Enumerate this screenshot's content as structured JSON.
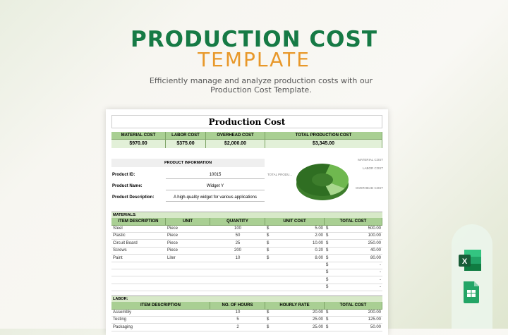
{
  "hero": {
    "title": "PRODUCTION COST",
    "title2": "TEMPLATE",
    "subtitle": "Efficiently manage and analyze production costs with our Production Cost Template."
  },
  "sheet": {
    "title": "Production Cost",
    "summary": {
      "headers": [
        "MATERIAL COST",
        "LABOR COST",
        "OVERHEAD COST",
        "TOTAL PRODUCTION COST"
      ],
      "values": [
        "$970.00",
        "$375.00",
        "$2,000.00",
        "$3,345.00"
      ]
    },
    "product": {
      "heading": "PRODUCT INFORMATION",
      "fields": [
        {
          "label": "Product ID:",
          "value": "10015"
        },
        {
          "label": "Product Name:",
          "value": "Widget Y"
        },
        {
          "label": "Product Description:",
          "value": "A high-quality widget for various applications"
        }
      ]
    },
    "chart": {
      "labels": [
        "MATERIAL COST",
        "LABOR COST",
        "OVERHEAD COST",
        "TOTAL PRODU..."
      ],
      "slices": [
        {
          "name": "MATERIAL COST",
          "value": 970,
          "color": "#6fb84f"
        },
        {
          "name": "LABOR COST",
          "value": 375,
          "color": "#a9d88e"
        },
        {
          "name": "OVERHEAD COST",
          "value": 2000,
          "color": "#2f6e22"
        }
      ]
    },
    "materials": {
      "label": "MATERIALS:",
      "headers": [
        "ITEM DESCRIPTION",
        "UNIT",
        "QUANTITY",
        "UNIT COST",
        "TOTAL COST"
      ],
      "rows": [
        [
          "Steel",
          "Piece",
          "100",
          "$",
          "5.00",
          "$",
          "500.00"
        ],
        [
          "Plastic",
          "Piece",
          "50",
          "$",
          "2.00",
          "$",
          "100.00"
        ],
        [
          "Circuit Board",
          "Piece",
          "25",
          "$",
          "10.00",
          "$",
          "250.00"
        ],
        [
          "Screws",
          "Piece",
          "200",
          "$",
          "0.20",
          "$",
          "40.00"
        ],
        [
          "Paint",
          "Liter",
          "10",
          "$",
          "8.00",
          "$",
          "80.00"
        ],
        [
          "",
          "",
          "",
          "",
          "",
          "$",
          "-"
        ],
        [
          "",
          "",
          "",
          "",
          "",
          "$",
          "-"
        ],
        [
          "",
          "",
          "",
          "",
          "",
          "$",
          "-"
        ],
        [
          "",
          "",
          "",
          "",
          "",
          "$",
          "-"
        ]
      ]
    },
    "labor": {
      "label": "LABOR:",
      "headers": [
        "ITEM DESCRIPTION",
        "NO. OF HOURS",
        "HOURLY RATE",
        "TOTAL COST"
      ],
      "rows": [
        [
          "Assembly",
          "10",
          "$",
          "20.00",
          "$",
          "200.00"
        ],
        [
          "Testing",
          "5",
          "$",
          "25.00",
          "$",
          "125.00"
        ],
        [
          "Packaging",
          "2",
          "$",
          "25.00",
          "$",
          "50.00"
        ]
      ]
    }
  },
  "apps": [
    "excel-icon",
    "google-sheets-icon"
  ]
}
